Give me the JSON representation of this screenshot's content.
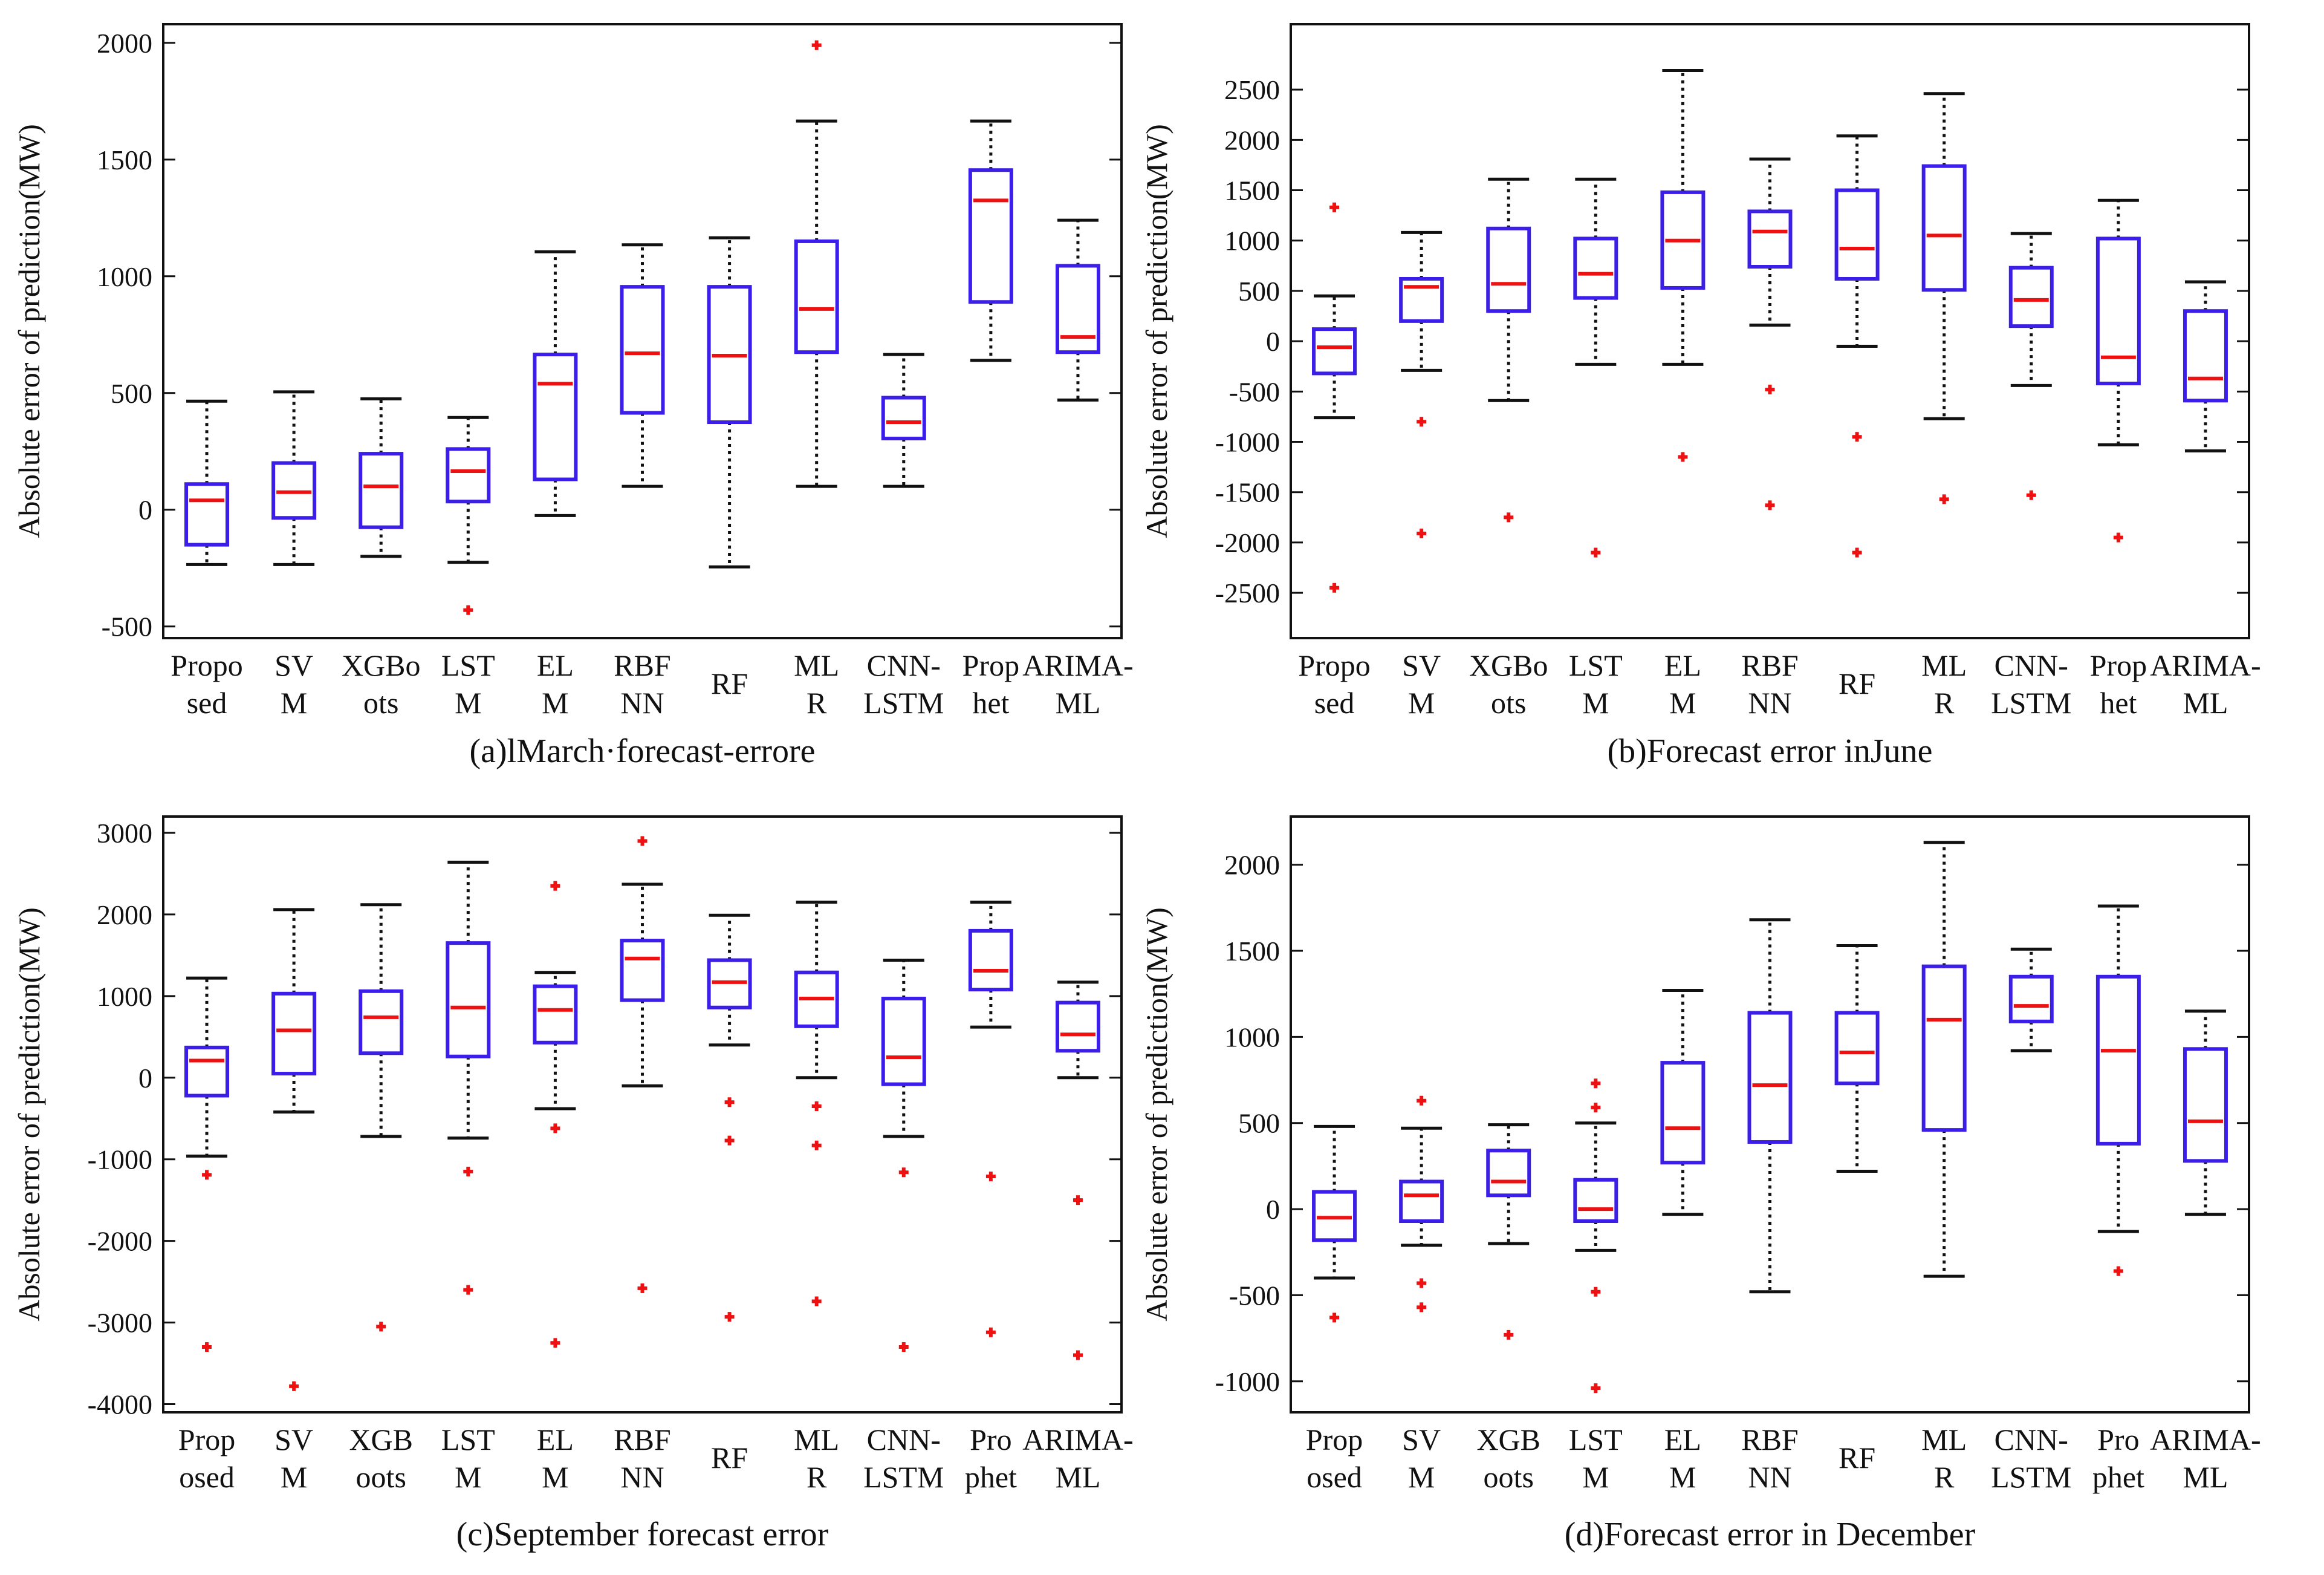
{
  "figure": {
    "colors": {
      "box": "#3b1fe6",
      "median": "#ee1111",
      "whisker": "#111111",
      "outlier": "#ee1111",
      "frame": "#111111"
    }
  },
  "chart_data": [
    {
      "type": "box",
      "caption": "(a)lMarch·forecast-errore",
      "ylabel": "Absolute error of prediction(MW)",
      "ylim": [
        -550,
        2080
      ],
      "yticks": [
        "-500",
        "0",
        "500",
        "1000",
        "1500",
        "2000"
      ],
      "categories": [
        [
          "Propo",
          "sed"
        ],
        [
          "SV",
          "M"
        ],
        [
          "XGBo",
          "ots"
        ],
        [
          "LST",
          "M"
        ],
        [
          "EL",
          "M"
        ],
        [
          "RBF",
          "NN"
        ],
        [
          "RF"
        ],
        [
          "ML",
          "R"
        ],
        [
          "CNN-",
          "LSTM"
        ],
        [
          "Prop",
          "het"
        ],
        [
          "ARIMA-",
          "ML"
        ]
      ],
      "boxes": [
        {
          "min": -235,
          "q1": -150,
          "median": 40,
          "q3": 110,
          "max": 465,
          "outliers": []
        },
        {
          "min": -235,
          "q1": -35,
          "median": 75,
          "q3": 200,
          "max": 505,
          "outliers": []
        },
        {
          "min": -200,
          "q1": -75,
          "median": 100,
          "q3": 240,
          "max": 475,
          "outliers": []
        },
        {
          "min": -225,
          "q1": 35,
          "median": 165,
          "q3": 260,
          "max": 395,
          "outliers": [
            -430
          ]
        },
        {
          "min": -25,
          "q1": 130,
          "median": 540,
          "q3": 665,
          "max": 1105,
          "outliers": []
        },
        {
          "min": 100,
          "q1": 415,
          "median": 670,
          "q3": 955,
          "max": 1135,
          "outliers": []
        },
        {
          "min": -245,
          "q1": 375,
          "median": 660,
          "q3": 955,
          "max": 1165,
          "outliers": []
        },
        {
          "min": 100,
          "q1": 675,
          "median": 860,
          "q3": 1150,
          "max": 1665,
          "outliers": [
            1990
          ]
        },
        {
          "min": 100,
          "q1": 305,
          "median": 375,
          "q3": 480,
          "max": 665,
          "outliers": []
        },
        {
          "min": 640,
          "q1": 890,
          "median": 1325,
          "q3": 1455,
          "max": 1665,
          "outliers": []
        },
        {
          "min": 470,
          "q1": 675,
          "median": 740,
          "q3": 1045,
          "max": 1240,
          "outliers": []
        }
      ]
    },
    {
      "type": "box",
      "caption": "(b)Forecast error inJune",
      "ylabel": "Absolute error of prediction(MW)",
      "ylim": [
        -2950,
        3150
      ],
      "yticks": [
        "-2500",
        "-2000",
        "-1500",
        "-1000",
        "-500",
        "0",
        "500",
        "1000",
        "1500",
        "2000",
        "2500"
      ],
      "categories": [
        [
          "Propo",
          "sed"
        ],
        [
          "SV",
          "M"
        ],
        [
          "XGBo",
          "ots"
        ],
        [
          "LST",
          "M"
        ],
        [
          "EL",
          "M"
        ],
        [
          "RBF",
          "NN"
        ],
        [
          "RF"
        ],
        [
          "ML",
          "R"
        ],
        [
          "CNN-",
          "LSTM"
        ],
        [
          "Prop",
          "het"
        ],
        [
          "ARIMA-",
          "ML"
        ]
      ],
      "boxes": [
        {
          "min": -760,
          "q1": -320,
          "median": -60,
          "q3": 120,
          "max": 450,
          "outliers": [
            1330,
            -2450
          ]
        },
        {
          "min": -290,
          "q1": 200,
          "median": 540,
          "q3": 620,
          "max": 1080,
          "outliers": [
            -800,
            -1910
          ]
        },
        {
          "min": -590,
          "q1": 300,
          "median": 570,
          "q3": 1120,
          "max": 1610,
          "outliers": [
            -1750
          ]
        },
        {
          "min": -230,
          "q1": 430,
          "median": 670,
          "q3": 1020,
          "max": 1610,
          "outliers": [
            -2100
          ]
        },
        {
          "min": -230,
          "q1": 530,
          "median": 1000,
          "q3": 1480,
          "max": 2690,
          "outliers": [
            -1150
          ]
        },
        {
          "min": 160,
          "q1": 740,
          "median": 1090,
          "q3": 1290,
          "max": 1810,
          "outliers": [
            -480,
            -1630
          ]
        },
        {
          "min": -50,
          "q1": 620,
          "median": 920,
          "q3": 1500,
          "max": 2040,
          "outliers": [
            -950,
            -2100
          ]
        },
        {
          "min": -770,
          "q1": 510,
          "median": 1050,
          "q3": 1740,
          "max": 2460,
          "outliers": [
            -1570
          ]
        },
        {
          "min": -440,
          "q1": 150,
          "median": 410,
          "q3": 730,
          "max": 1070,
          "outliers": [
            -1530
          ]
        },
        {
          "min": -1030,
          "q1": -420,
          "median": -160,
          "q3": 1020,
          "max": 1400,
          "outliers": [
            -1950
          ]
        },
        {
          "min": -1090,
          "q1": -590,
          "median": -370,
          "q3": 300,
          "max": 590,
          "outliers": []
        }
      ]
    },
    {
      "type": "box",
      "caption": "(c)September forecast error",
      "ylabel": "Absolute error of prediction(MW)",
      "ylim": [
        -4100,
        3200
      ],
      "yticks": [
        "-4000",
        "-3000",
        "-2000",
        "-1000",
        "0",
        "1000",
        "2000",
        "3000"
      ],
      "categories": [
        [
          "Prop",
          "osed"
        ],
        [
          "SV",
          "M"
        ],
        [
          "XGB",
          "oots"
        ],
        [
          "LST",
          "M"
        ],
        [
          "EL",
          "M"
        ],
        [
          "RBF",
          "NN"
        ],
        [
          "RF"
        ],
        [
          "ML",
          "R"
        ],
        [
          "CNN-",
          "LSTM"
        ],
        [
          "Pro",
          "phet"
        ],
        [
          "ARIMA-",
          "ML"
        ]
      ],
      "boxes": [
        {
          "min": -960,
          "q1": -220,
          "median": 210,
          "q3": 370,
          "max": 1220,
          "outliers": [
            -1190,
            -3300
          ]
        },
        {
          "min": -420,
          "q1": 50,
          "median": 580,
          "q3": 1030,
          "max": 2060,
          "outliers": [
            -3780
          ]
        },
        {
          "min": -720,
          "q1": 300,
          "median": 740,
          "q3": 1060,
          "max": 2120,
          "outliers": [
            -3050
          ]
        },
        {
          "min": -740,
          "q1": 260,
          "median": 860,
          "q3": 1650,
          "max": 2640,
          "outliers": [
            -1150,
            -2600
          ]
        },
        {
          "min": -380,
          "q1": 430,
          "median": 830,
          "q3": 1120,
          "max": 1290,
          "outliers": [
            2350,
            -620,
            -3250
          ]
        },
        {
          "min": -100,
          "q1": 950,
          "median": 1460,
          "q3": 1680,
          "max": 2370,
          "outliers": [
            2900,
            -2580
          ]
        },
        {
          "min": 400,
          "q1": 860,
          "median": 1170,
          "q3": 1440,
          "max": 1990,
          "outliers": [
            -300,
            -770,
            -2930
          ]
        },
        {
          "min": 0,
          "q1": 630,
          "median": 970,
          "q3": 1290,
          "max": 2150,
          "outliers": [
            -350,
            -830,
            -2740
          ]
        },
        {
          "min": -720,
          "q1": -80,
          "median": 250,
          "q3": 970,
          "max": 1440,
          "outliers": [
            -1160,
            -3300
          ]
        },
        {
          "min": 620,
          "q1": 1080,
          "median": 1310,
          "q3": 1800,
          "max": 2150,
          "outliers": [
            -1210,
            -3120
          ]
        },
        {
          "min": 0,
          "q1": 330,
          "median": 530,
          "q3": 920,
          "max": 1170,
          "outliers": [
            -1500,
            -3400
          ]
        }
      ]
    },
    {
      "type": "box",
      "caption": "(d)Forecast error in December",
      "ylabel": "Absolute error of prediction(MW)",
      "ylim": [
        -1180,
        2280
      ],
      "yticks": [
        "-1000",
        "-500",
        "0",
        "500",
        "1000",
        "1500",
        "2000"
      ],
      "categories": [
        [
          "Prop",
          "osed"
        ],
        [
          "SV",
          "M"
        ],
        [
          "XGB",
          "oots"
        ],
        [
          "LST",
          "M"
        ],
        [
          "EL",
          "M"
        ],
        [
          "RBF",
          "NN"
        ],
        [
          "RF"
        ],
        [
          "ML",
          "R"
        ],
        [
          "CNN-",
          "LSTM"
        ],
        [
          "Pro",
          "phet"
        ],
        [
          "ARIMA-",
          "ML"
        ]
      ],
      "boxes": [
        {
          "min": -400,
          "q1": -180,
          "median": -50,
          "q3": 100,
          "max": 480,
          "outliers": [
            -630
          ]
        },
        {
          "min": -210,
          "q1": -70,
          "median": 80,
          "q3": 160,
          "max": 470,
          "outliers": [
            630,
            -430,
            -570
          ]
        },
        {
          "min": -200,
          "q1": 80,
          "median": 160,
          "q3": 340,
          "max": 490,
          "outliers": [
            -730
          ]
        },
        {
          "min": -240,
          "q1": -70,
          "median": 0,
          "q3": 170,
          "max": 500,
          "outliers": [
            730,
            590,
            -480,
            -1040
          ]
        },
        {
          "min": -30,
          "q1": 270,
          "median": 470,
          "q3": 850,
          "max": 1270,
          "outliers": []
        },
        {
          "min": -480,
          "q1": 390,
          "median": 720,
          "q3": 1140,
          "max": 1680,
          "outliers": []
        },
        {
          "min": 220,
          "q1": 730,
          "median": 910,
          "q3": 1140,
          "max": 1530,
          "outliers": []
        },
        {
          "min": -390,
          "q1": 460,
          "median": 1100,
          "q3": 1410,
          "max": 2130,
          "outliers": []
        },
        {
          "min": 920,
          "q1": 1090,
          "median": 1180,
          "q3": 1350,
          "max": 1510,
          "outliers": []
        },
        {
          "min": -130,
          "q1": 380,
          "median": 920,
          "q3": 1350,
          "max": 1760,
          "outliers": [
            -360
          ]
        },
        {
          "min": -30,
          "q1": 280,
          "median": 510,
          "q3": 930,
          "max": 1150,
          "outliers": []
        }
      ]
    }
  ]
}
